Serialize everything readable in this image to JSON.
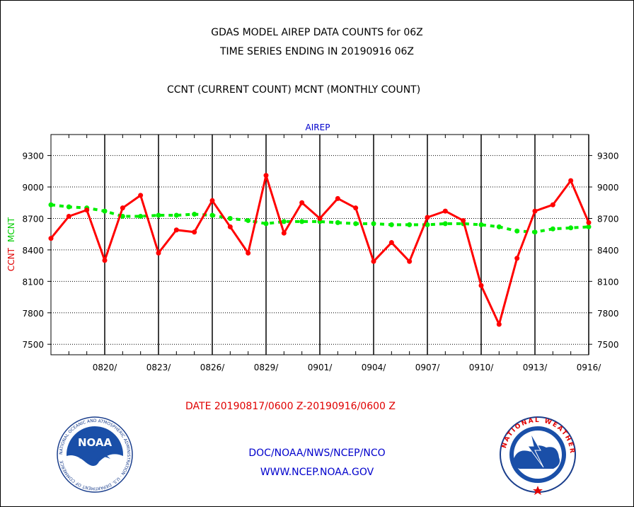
{
  "header": {
    "title_line1": "GDAS MODEL AIREP DATA COUNTS for 06Z",
    "title_line2": "TIME SERIES ENDING IN 20190916 06Z",
    "subtitle": "CCNT (CURRENT COUNT) MCNT (MONTHLY COUNT)"
  },
  "footer": {
    "date_range": "DATE 20190817/0600 Z-20190916/0600 Z",
    "org": "DOC/NOAA/NWS/NCEP/NCO",
    "url": "WWW.NCEP.NOAA.GOV"
  },
  "logos": {
    "noaa_text": "NOAA",
    "noaa_ring": "NATIONAL OCEANIC AND ATMOSPHERIC ADMINISTRATION · U.S. DEPARTMENT OF COMMERCE",
    "nws_ring": "NATIONAL WEATHER SERVICE"
  },
  "chart_data": {
    "type": "line",
    "title": "AIREP",
    "ylabel_parts": [
      "CCNT",
      "MCNT"
    ],
    "ylim": [
      7400,
      9500
    ],
    "yticks": [
      7500,
      7800,
      8100,
      8400,
      8700,
      9000,
      9300
    ],
    "xlim": [
      0,
      30
    ],
    "xticks": [
      {
        "x": 3,
        "label": "0820/"
      },
      {
        "x": 6,
        "label": "0823/"
      },
      {
        "x": 9,
        "label": "0826/"
      },
      {
        "x": 12,
        "label": "0829/"
      },
      {
        "x": 15,
        "label": "0901/"
      },
      {
        "x": 18,
        "label": "0904/"
      },
      {
        "x": 21,
        "label": "0907/"
      },
      {
        "x": 24,
        "label": "0910/"
      },
      {
        "x": 27,
        "label": "0913/"
      },
      {
        "x": 30,
        "label": "0916/"
      }
    ],
    "grid": true,
    "series": [
      {
        "name": "CCNT",
        "color": "#ff0000",
        "style": "solid",
        "x": [
          0,
          1,
          2,
          3,
          4,
          5,
          6,
          7,
          8,
          9,
          10,
          11,
          12,
          13,
          14,
          15,
          16,
          17,
          18,
          19,
          20,
          21,
          22,
          23,
          24,
          25,
          26,
          27,
          28,
          29,
          30
        ],
        "values": [
          8510,
          8720,
          8780,
          8300,
          8800,
          8920,
          8370,
          8590,
          8570,
          8870,
          8620,
          8370,
          9110,
          8560,
          8850,
          8700,
          8890,
          8800,
          8290,
          8470,
          8290,
          8710,
          8770,
          8680,
          8060,
          7690,
          8320,
          8770,
          8830,
          9060,
          8660
        ]
      },
      {
        "name": "MCNT",
        "color": "#00ee00",
        "style": "dashed",
        "x": [
          0,
          1,
          2,
          3,
          4,
          5,
          6,
          7,
          8,
          9,
          10,
          11,
          12,
          13,
          14,
          15,
          16,
          17,
          18,
          19,
          20,
          21,
          22,
          23,
          24,
          25,
          26,
          27,
          28,
          29,
          30
        ],
        "values": [
          8830,
          8810,
          8800,
          8770,
          8720,
          8720,
          8730,
          8730,
          8740,
          8730,
          8700,
          8680,
          8650,
          8670,
          8670,
          8670,
          8660,
          8650,
          8650,
          8640,
          8640,
          8640,
          8650,
          8650,
          8640,
          8620,
          8580,
          8570,
          8600,
          8610,
          8620
        ]
      }
    ]
  }
}
